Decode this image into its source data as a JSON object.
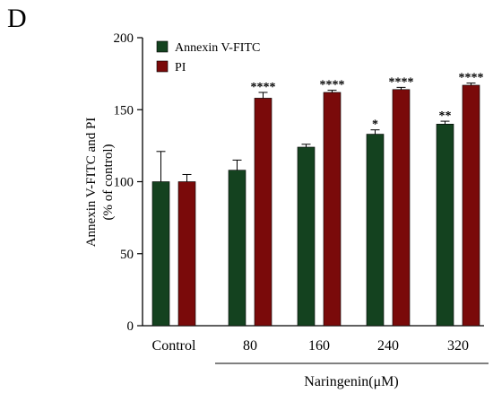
{
  "panel_label": "D",
  "chart_data": {
    "type": "bar",
    "ylabel": "Annexin V-FITC and  PI",
    "ylabel2": "(% of control)",
    "xlabel": "Naringenin(μM)",
    "ylim": [
      0,
      200
    ],
    "yticks": [
      0,
      50,
      100,
      150,
      200
    ],
    "categories": [
      "Control",
      "80",
      "160",
      "240",
      "320"
    ],
    "series": [
      {
        "name": "Annexin V-FITC",
        "color": "#14421f",
        "values": [
          100,
          108,
          124,
          133,
          140
        ],
        "errors": [
          21,
          7,
          2,
          3,
          2
        ],
        "significance": [
          "",
          "",
          "",
          "*",
          "**"
        ]
      },
      {
        "name": "PI",
        "color": "#7a0a0a",
        "values": [
          100,
          158,
          162,
          164,
          167
        ],
        "errors": [
          5,
          4,
          1.5,
          1.5,
          1.5
        ],
        "significance": [
          "",
          "****",
          "****",
          "****",
          "****"
        ]
      }
    ],
    "legend_position": "top-left"
  }
}
